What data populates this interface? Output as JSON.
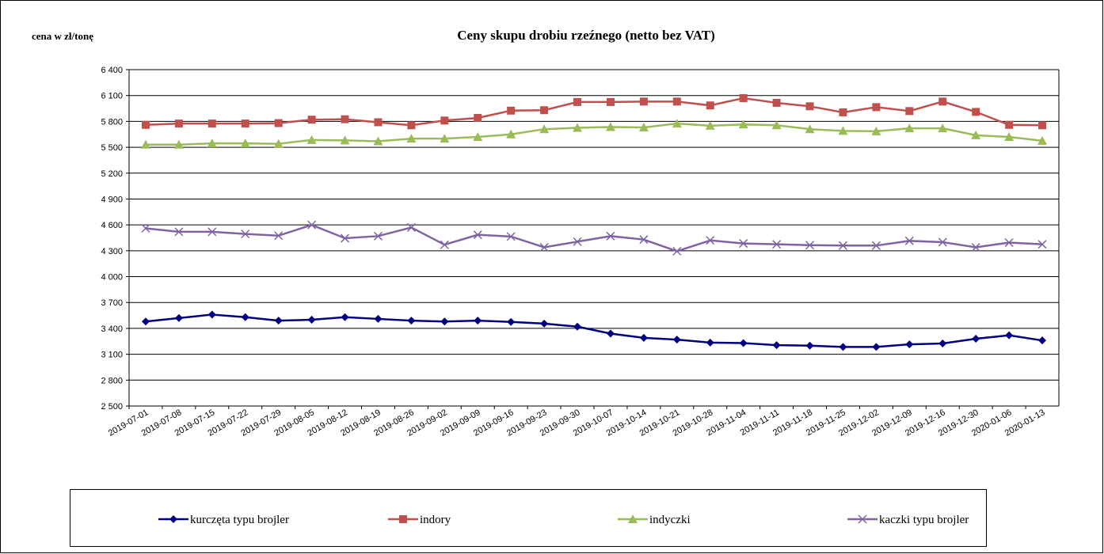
{
  "chart_data": {
    "type": "line",
    "title": "Ceny skupu drobiu rzeźnego (netto bez VAT)",
    "y_label": "cena w zł/tonę",
    "categories": [
      "2019-07-01",
      "2019-07-08",
      "2019-07-15",
      "2019-07-22",
      "2019-07-29",
      "2019-08-05",
      "2019-08-12",
      "2019-08-19",
      "2019-08-26",
      "2019-09-02",
      "2019-09-09",
      "2019-09-16",
      "2019-09-23",
      "2019-09-30",
      "2019-10-07",
      "2019-10-14",
      "2019-10-21",
      "2019-10-28",
      "2019-11-04",
      "2019-11-11",
      "2019-11-18",
      "2019-11-25",
      "2019-12-02",
      "2019-12-09",
      "2019-12-16",
      "2019-12-30",
      "2020-01-06",
      "2020-01-13"
    ],
    "series": [
      {
        "name": "kurczęta typu brojler",
        "color": "#000080",
        "marker": "diamond",
        "values": [
          3480,
          3520,
          3560,
          3530,
          3490,
          3500,
          3530,
          3510,
          3490,
          3480,
          3490,
          3475,
          3455,
          3420,
          3340,
          3290,
          3270,
          3235,
          3230,
          3205,
          3200,
          3185,
          3185,
          3215,
          3225,
          3280,
          3320,
          3260
        ]
      },
      {
        "name": "indory",
        "color": "#c0504d",
        "marker": "square",
        "values": [
          5760,
          5775,
          5775,
          5775,
          5780,
          5820,
          5825,
          5790,
          5755,
          5810,
          5840,
          5925,
          5930,
          6025,
          6025,
          6030,
          6030,
          5985,
          6070,
          6015,
          5975,
          5905,
          5965,
          5920,
          6030,
          5910,
          5760,
          5755
        ]
      },
      {
        "name": "indyczki",
        "color": "#9bbb59",
        "marker": "triangle",
        "values": [
          5530,
          5530,
          5545,
          5545,
          5540,
          5585,
          5580,
          5570,
          5600,
          5600,
          5620,
          5650,
          5710,
          5725,
          5735,
          5730,
          5775,
          5750,
          5765,
          5755,
          5710,
          5690,
          5685,
          5720,
          5720,
          5640,
          5620,
          5575
        ]
      },
      {
        "name": "kaczki typu brojler",
        "color": "#8064a2",
        "marker": "x",
        "values": [
          4560,
          4520,
          4520,
          4495,
          4475,
          4600,
          4445,
          4470,
          4570,
          4370,
          4485,
          4465,
          4340,
          4405,
          4470,
          4430,
          4295,
          4420,
          4385,
          4375,
          4365,
          4360,
          4360,
          4415,
          4400,
          4340,
          4395,
          4375
        ]
      }
    ],
    "ylim": [
      2500,
      6400
    ],
    "yticks": [
      {
        "value": 2500,
        "label": "2 500"
      },
      {
        "value": 2800,
        "label": "2 800"
      },
      {
        "value": 3100,
        "label": "3 100"
      },
      {
        "value": 3400,
        "label": "3 400"
      },
      {
        "value": 3700,
        "label": "3 700"
      },
      {
        "value": 4000,
        "label": "4 000"
      },
      {
        "value": 4300,
        "label": "4 300"
      },
      {
        "value": 4600,
        "label": "4 600"
      },
      {
        "value": 4900,
        "label": "4 900"
      },
      {
        "value": 5200,
        "label": "5 200"
      },
      {
        "value": 5500,
        "label": "5 500"
      },
      {
        "value": 5800,
        "label": "5 800"
      },
      {
        "value": 6100,
        "label": "6 100"
      },
      {
        "value": 6400,
        "label": "6 400"
      }
    ],
    "grid": true
  }
}
